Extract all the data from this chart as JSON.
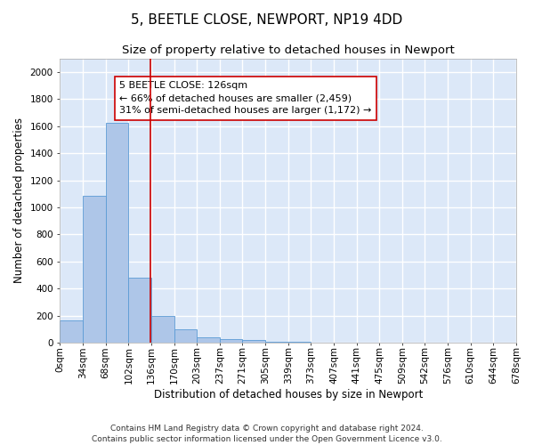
{
  "title": "5, BEETLE CLOSE, NEWPORT, NP19 4DD",
  "subtitle": "Size of property relative to detached houses in Newport",
  "xlabel": "Distribution of detached houses by size in Newport",
  "ylabel": "Number of detached properties",
  "bin_labels": [
    "0sqm",
    "34sqm",
    "68sqm",
    "102sqm",
    "136sqm",
    "170sqm",
    "203sqm",
    "237sqm",
    "271sqm",
    "305sqm",
    "339sqm",
    "373sqm",
    "407sqm",
    "441sqm",
    "475sqm",
    "509sqm",
    "542sqm",
    "576sqm",
    "610sqm",
    "644sqm",
    "678sqm"
  ],
  "bar_values": [
    165,
    1085,
    1625,
    480,
    200,
    100,
    40,
    25,
    20,
    10,
    10,
    0,
    0,
    0,
    0,
    0,
    0,
    0,
    0,
    0
  ],
  "bar_color": "#aec6e8",
  "bar_edge_color": "#5b9bd5",
  "background_color": "#dce8f8",
  "grid_color": "#ffffff",
  "vline_x": 3.97,
  "vline_color": "#cc0000",
  "annotation_text": "5 BEETLE CLOSE: 126sqm\n← 66% of detached houses are smaller (2,459)\n31% of semi-detached houses are larger (1,172) →",
  "annotation_box_color": "#ffffff",
  "annotation_box_edge": "#cc0000",
  "ylim": [
    0,
    2100
  ],
  "yticks": [
    0,
    200,
    400,
    600,
    800,
    1000,
    1200,
    1400,
    1600,
    1800,
    2000
  ],
  "footer_text": "Contains HM Land Registry data © Crown copyright and database right 2024.\nContains public sector information licensed under the Open Government Licence v3.0.",
  "title_fontsize": 11,
  "subtitle_fontsize": 9.5,
  "axis_label_fontsize": 8.5,
  "tick_fontsize": 7.5,
  "annotation_fontsize": 8,
  "footer_fontsize": 6.5
}
